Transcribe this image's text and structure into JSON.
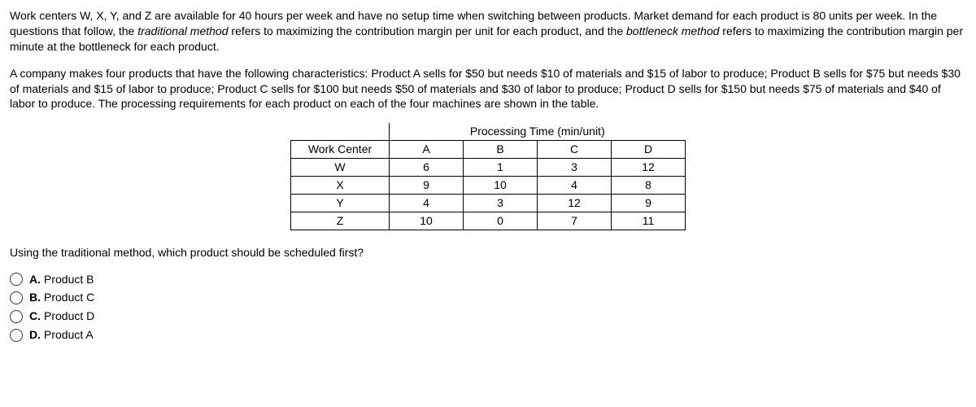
{
  "paragraph1_a": "Work centers W, X, Y, and Z are available for 40 hours per week and have no setup time when switching between products. Market demand for each product is 80 units per week. In the questions that follow, the ",
  "paragraph1_em1": "traditional method",
  "paragraph1_b": " refers to maximizing the contribution margin per unit for each product, and the ",
  "paragraph1_em2": "bottleneck method",
  "paragraph1_c": " refers to maximizing the contribution margin per minute at the bottleneck for each product.",
  "paragraph2": "A company makes four products that have the following characteristics: Product A sells for $50 but needs $10 of materials and $15 of labor to produce; Product B sells for $75 but needs $30 of materials and $15 of labor to produce; Product C sells for $100 but needs $50 of materials and $30 of labor to produce; Product D sells for $150 but needs $75 of materials and $40 of labor to produce. The processing requirements for each product on each of the four machines are shown in the table.",
  "table": {
    "title": "Processing Time (min/unit)",
    "corner": "Work Center",
    "cols": [
      "A",
      "B",
      "C",
      "D"
    ],
    "rows": [
      {
        "label": "W",
        "vals": [
          "6",
          "1",
          "3",
          "12"
        ]
      },
      {
        "label": "X",
        "vals": [
          "9",
          "10",
          "4",
          "8"
        ]
      },
      {
        "label": "Y",
        "vals": [
          "4",
          "3",
          "12",
          "9"
        ]
      },
      {
        "label": "Z",
        "vals": [
          "10",
          "0",
          "7",
          "11"
        ]
      }
    ]
  },
  "question": "Using the traditional method, which product should be scheduled first?",
  "options": [
    {
      "letter": "A.",
      "text": "Product B"
    },
    {
      "letter": "B.",
      "text": "Product C"
    },
    {
      "letter": "C.",
      "text": "Product D"
    },
    {
      "letter": "D.",
      "text": "Product A"
    }
  ]
}
